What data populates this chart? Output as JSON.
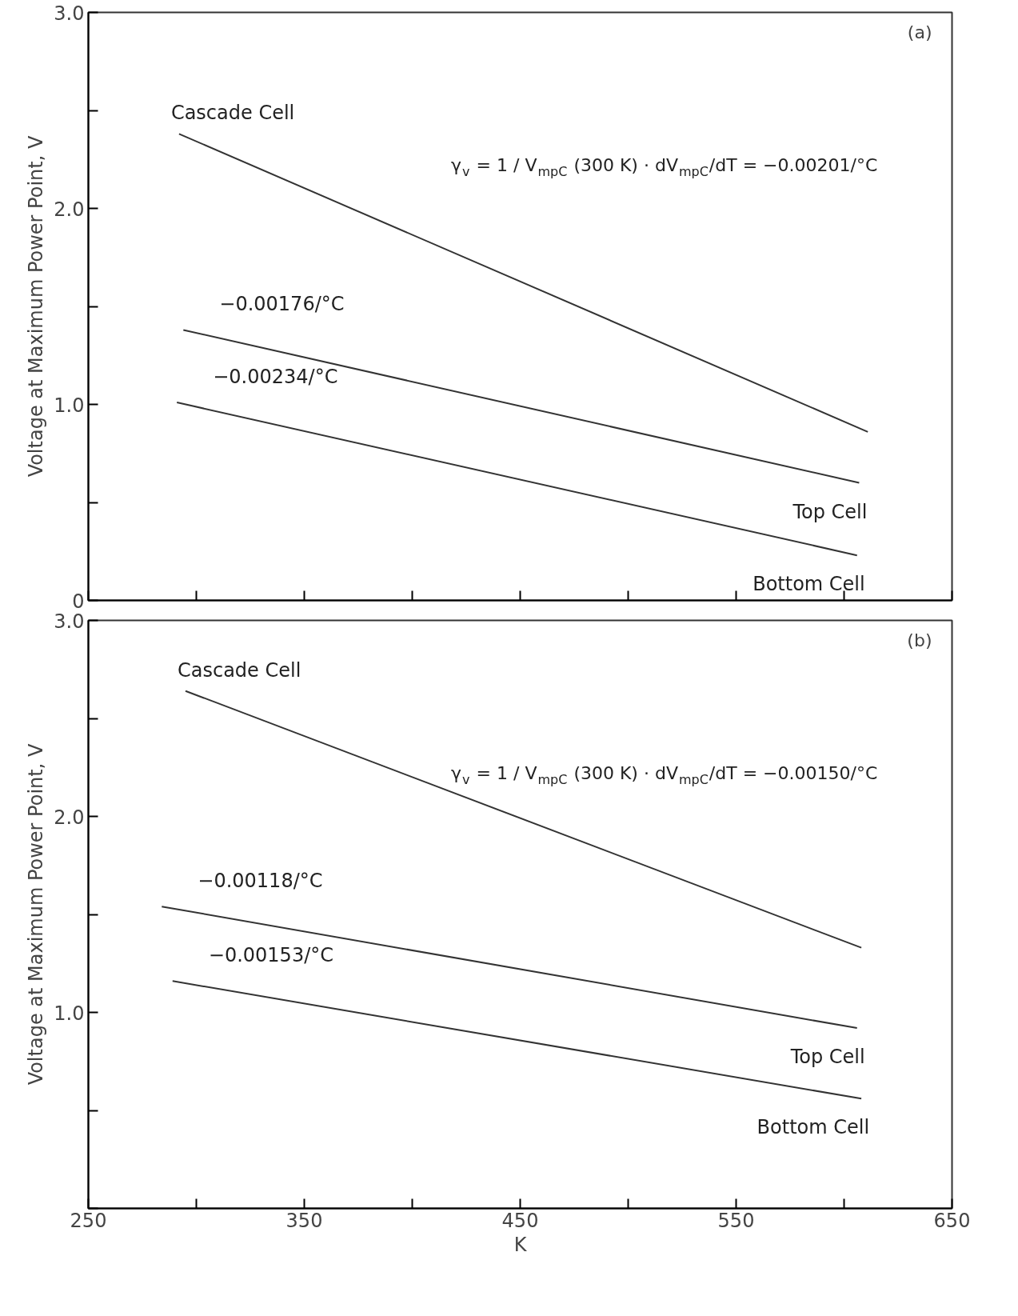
{
  "chart_data": [
    {
      "type": "line",
      "annotations": [
        "(a)",
        "γ$_{v}$ = 1 / V$_{mpC}$ (300 K) · dV$_{mpC}$/dT = −0.00201/°C",
        "−0.00176/°C",
        "−0.00234/°C"
      ],
      "ylabel": "Voltage at Maximum Power Point, V",
      "xlim": [
        250,
        650
      ],
      "ylim": [
        0,
        3.0
      ],
      "xticks": [
        {
          "value": 250,
          "label": null
        },
        {
          "value": 300,
          "label": null
        },
        {
          "value": 350,
          "label": null
        },
        {
          "value": 400,
          "label": null
        },
        {
          "value": 450,
          "label": null
        },
        {
          "value": 500,
          "label": null
        },
        {
          "value": 550,
          "label": null
        },
        {
          "value": 600,
          "label": null
        },
        {
          "value": 650,
          "label": null
        }
      ],
      "yticks": [
        {
          "value": 0,
          "label": "0"
        },
        {
          "value": 0.5,
          "label": null
        },
        {
          "value": 1.0,
          "label": "1.0"
        },
        {
          "value": 1.5,
          "label": null
        },
        {
          "value": 2.0,
          "label": "2.0"
        },
        {
          "value": 2.5,
          "label": null
        },
        {
          "value": 3.0,
          "label": "3.0"
        }
      ],
      "tick_labels": "y",
      "grid": false,
      "series": [
        {
          "name": "Cascade Cell",
          "color": "#333333",
          "x": [
            292,
            611
          ],
          "values": [
            2.38,
            0.86
          ]
        },
        {
          "name": "Top Cell",
          "color": "#333333",
          "x": [
            294,
            607
          ],
          "values": [
            1.38,
            0.6
          ]
        },
        {
          "name": "Bottom Cell",
          "color": "#333333",
          "x": [
            291,
            606
          ],
          "values": [
            1.01,
            0.23
          ]
        }
      ]
    },
    {
      "type": "line",
      "annotations": [
        "(b)",
        "γ$_{v}$ = 1 / V$_{mpC}$ (300 K) · dV$_{mpC}$/dT = −0.00150/°C",
        "−0.00118/°C",
        "−0.00153/°C"
      ],
      "xlabel": "K",
      "ylabel": "Voltage at Maximum Power Point, V",
      "xlim": [
        250,
        650
      ],
      "ylim": [
        0,
        3.0
      ],
      "xticks": [
        {
          "value": 250,
          "label": "250"
        },
        {
          "value": 300,
          "label": null
        },
        {
          "value": 350,
          "label": "350"
        },
        {
          "value": 400,
          "label": null
        },
        {
          "value": 450,
          "label": "450"
        },
        {
          "value": 500,
          "label": null
        },
        {
          "value": 550,
          "label": "550"
        },
        {
          "value": 600,
          "label": null
        },
        {
          "value": 650,
          "label": "650"
        }
      ],
      "yticks": [
        {
          "value": 0,
          "label": null
        },
        {
          "value": 0.5,
          "label": null
        },
        {
          "value": 1.0,
          "label": "1.0"
        },
        {
          "value": 1.5,
          "label": null
        },
        {
          "value": 2.0,
          "label": "2.0"
        },
        {
          "value": 2.5,
          "label": null
        },
        {
          "value": 3.0,
          "label": "3.0"
        }
      ],
      "grid": false,
      "series": [
        {
          "name": "Cascade Cell",
          "color": "#333333",
          "x": [
            295,
            608
          ],
          "values": [
            2.64,
            1.33
          ]
        },
        {
          "name": "Top Cell",
          "color": "#333333",
          "x": [
            284,
            606
          ],
          "values": [
            1.54,
            0.92
          ]
        },
        {
          "name": "Bottom Cell",
          "color": "#333333",
          "x": [
            289,
            608
          ],
          "values": [
            1.16,
            0.56
          ]
        }
      ]
    }
  ]
}
